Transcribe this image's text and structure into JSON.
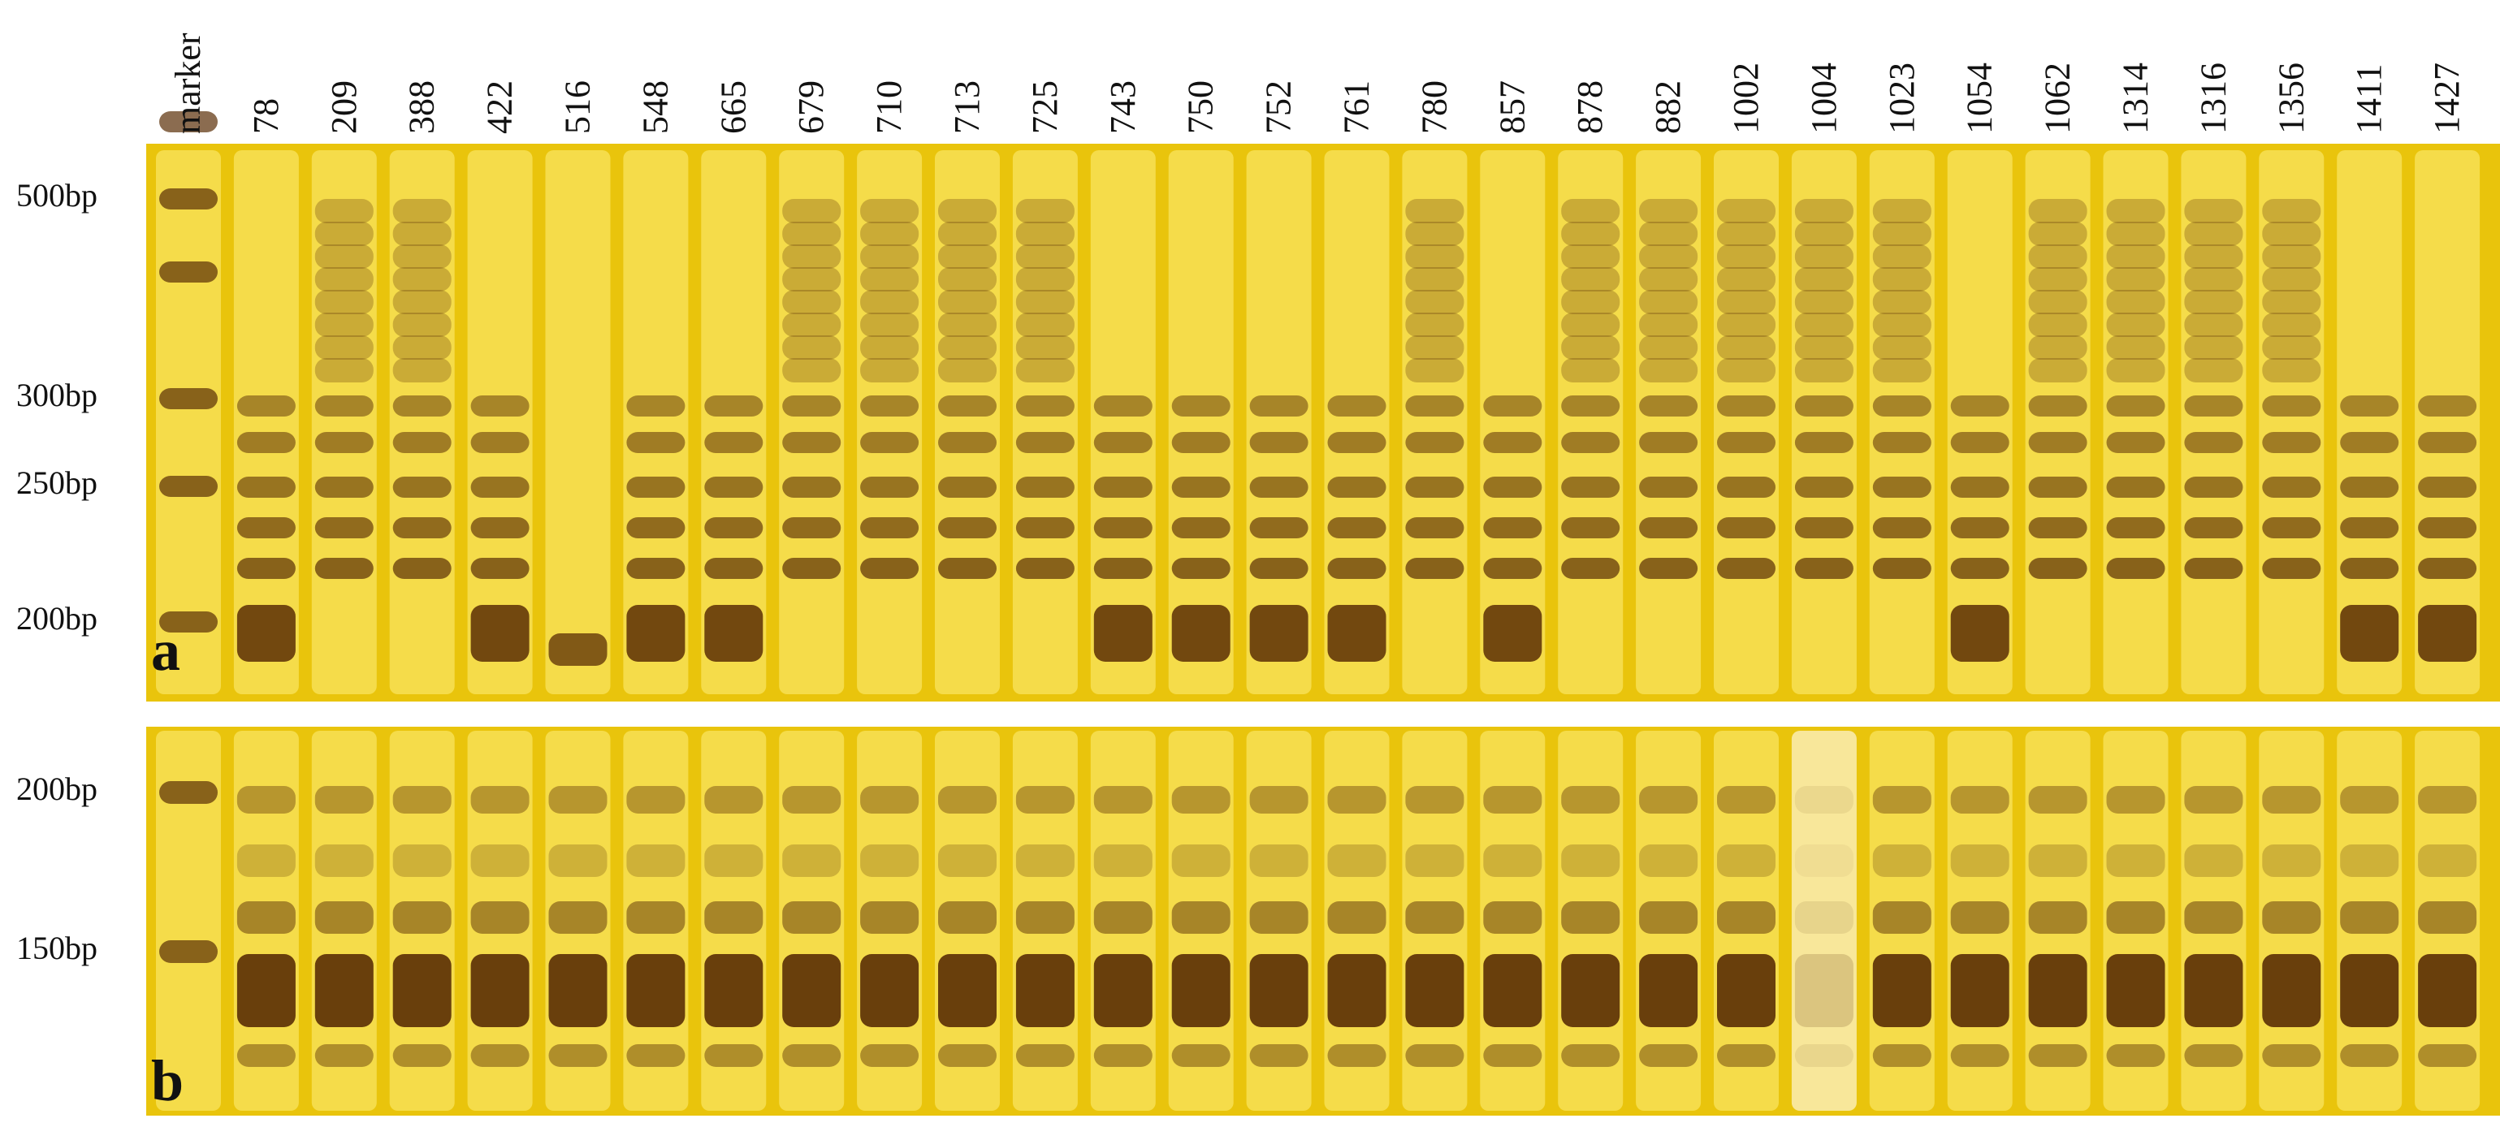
{
  "lanes": [
    "marker",
    "78",
    "209",
    "388",
    "422",
    "516",
    "548",
    "665",
    "679",
    "710",
    "713",
    "725",
    "743",
    "750",
    "752",
    "761",
    "780",
    "857",
    "878",
    "882",
    "1002",
    "1004",
    "1023",
    "1054",
    "1062",
    "1314",
    "1316",
    "1356",
    "1411",
    "1427"
  ],
  "panels": [
    {
      "letter": "a",
      "size_markers": [
        "500bp",
        "300bp",
        "250bp",
        "200bp"
      ]
    },
    {
      "letter": "b",
      "size_markers": [
        "200bp",
        "150bp"
      ]
    }
  ]
}
